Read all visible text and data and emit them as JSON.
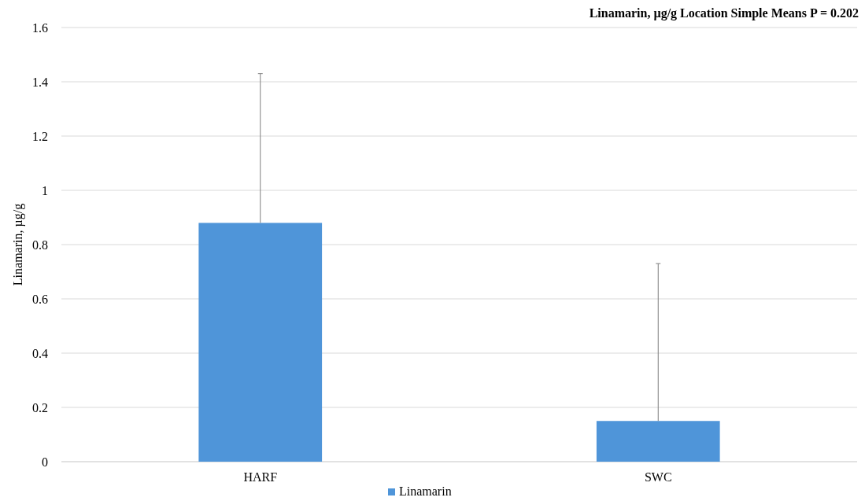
{
  "chart_data": {
    "type": "bar",
    "title": "Linamarin, µg/g Location Simple Means P = 0.202",
    "ylabel": "Linamarin, µg/g",
    "categories": [
      "HARF",
      "SWC"
    ],
    "series": [
      {
        "name": "Linamarin",
        "color": "#4f95d9",
        "values": [
          0.88,
          0.15
        ],
        "errors": [
          [
            0.88,
            1.43
          ],
          [
            0.15,
            0.73
          ]
        ]
      }
    ],
    "ylim": [
      0,
      1.6
    ],
    "yticks": [
      0,
      0.2,
      0.4,
      0.6,
      0.8,
      1,
      1.2,
      1.4,
      1.6
    ],
    "grid": "y",
    "legend": "bottom"
  }
}
